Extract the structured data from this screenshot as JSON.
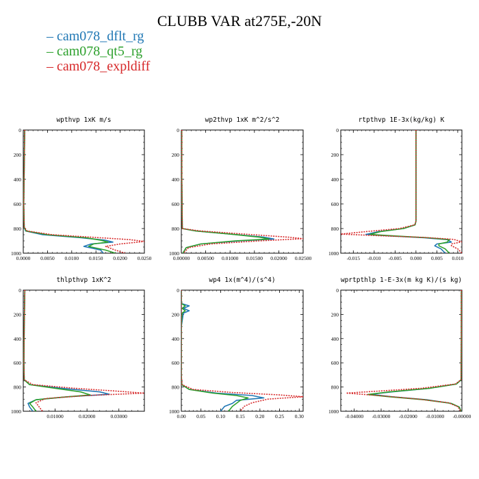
{
  "title": "CLUBB VAR at275E,-20N",
  "legend": [
    {
      "label": "cam078_dflt_rg",
      "color": "#1f77b4"
    },
    {
      "label": "cam078_qt5_rg",
      "color": "#2ca02c"
    },
    {
      "label": "cam078_expldiff",
      "color": "#d62728"
    }
  ],
  "chart_data": [
    {
      "type": "line",
      "title": "wpthvp  1xK m/s",
      "xlim": [
        0,
        0.025
      ],
      "xticks": [
        0,
        0.005,
        0.01,
        0.015,
        0.02,
        0.025
      ],
      "xticklabels": [
        "0.0000",
        "0.0050",
        "0.0100",
        "0.0150",
        "0.0200",
        "0.0250"
      ],
      "ylim": [
        1000,
        0
      ],
      "yticks": [
        0,
        200,
        400,
        600,
        800,
        1000
      ],
      "yticklabels": [
        "0",
        "200",
        "400",
        "600",
        "800",
        "1000"
      ],
      "series": [
        {
          "name": "cam078_dflt_rg",
          "color": "#1f77b4",
          "dash": "solid",
          "x": [
            0.0003,
            0.0002,
            0.0001,
            0.0002,
            0.0005,
            0.004,
            0.012,
            0.017,
            0.0185,
            0.014,
            0.0125,
            0.016,
            0.0165
          ],
          "y": [
            0,
            300,
            600,
            790,
            820,
            850,
            875,
            895,
            910,
            925,
            945,
            975,
            1000
          ]
        },
        {
          "name": "cam078_qt5_rg",
          "color": "#2ca02c",
          "dash": "solid",
          "x": [
            0.0003,
            0.0002,
            0.0001,
            0.0002,
            0.0006,
            0.005,
            0.013,
            0.016,
            0.0175,
            0.0145,
            0.0135,
            0.017,
            0.019
          ],
          "y": [
            0,
            300,
            600,
            790,
            820,
            850,
            875,
            895,
            910,
            925,
            945,
            975,
            1000
          ]
        },
        {
          "name": "cam078_expldiff",
          "color": "#d62728",
          "dash": "dotted",
          "x": [
            0.0003,
            0.0002,
            0.0001,
            0.0002,
            0.0008,
            0.006,
            0.016,
            0.022,
            0.025,
            0.02,
            0.017,
            0.019,
            0.021
          ],
          "y": [
            0,
            300,
            600,
            790,
            820,
            850,
            875,
            890,
            905,
            925,
            945,
            975,
            1000
          ]
        }
      ]
    },
    {
      "type": "line",
      "title": "wp2thvp  1xK m^2/s^2",
      "xlim": [
        0,
        0.025
      ],
      "xticks": [
        0,
        0.005,
        0.01,
        0.015,
        0.02,
        0.025
      ],
      "xticklabels": [
        "0.00000",
        "0.00500",
        "0.01000",
        "0.01500",
        "0.02000",
        "0.02500"
      ],
      "ylim": [
        1000,
        0
      ],
      "yticks": [
        0,
        200,
        400,
        600,
        800,
        1000
      ],
      "yticklabels": [
        "0",
        "200",
        "400",
        "600",
        "800",
        "1000"
      ],
      "series": [
        {
          "name": "cam078_dflt_rg",
          "color": "#1f77b4",
          "dash": "solid",
          "x": [
            0.0001,
            0.0001,
            0.0002,
            0.003,
            0.01,
            0.017,
            0.019,
            0.012,
            0.004,
            0.001,
            0.0003
          ],
          "y": [
            0,
            400,
            800,
            820,
            845,
            870,
            885,
            900,
            925,
            955,
            1000
          ]
        },
        {
          "name": "cam078_qt5_rg",
          "color": "#2ca02c",
          "dash": "solid",
          "x": [
            0.0001,
            0.0001,
            0.0002,
            0.003,
            0.01,
            0.016,
            0.018,
            0.011,
            0.004,
            0.001,
            0.0003
          ],
          "y": [
            0,
            400,
            800,
            820,
            845,
            870,
            885,
            900,
            925,
            955,
            1000
          ]
        },
        {
          "name": "cam078_expldiff",
          "color": "#d62728",
          "dash": "dotted",
          "x": [
            0.0001,
            0.0001,
            0.0002,
            0.004,
            0.013,
            0.022,
            0.025,
            0.016,
            0.006,
            0.0015,
            0.0004
          ],
          "y": [
            0,
            400,
            800,
            820,
            845,
            870,
            882,
            900,
            925,
            955,
            1000
          ]
        }
      ]
    },
    {
      "type": "line",
      "title": "rtpthvp  1E-3x(kg/kg) K",
      "xlim": [
        -0.018,
        0.011
      ],
      "xticks": [
        -0.015,
        -0.01,
        -0.005,
        0,
        0.005,
        0.01
      ],
      "xticklabels": [
        "-0.015",
        "-0.010",
        "-0.005",
        "0.000",
        "0.005",
        "0.010"
      ],
      "ylim": [
        1000,
        0
      ],
      "yticks": [
        0,
        200,
        400,
        600,
        800,
        1000
      ],
      "yticklabels": [
        "0",
        "200",
        "400",
        "600",
        "800",
        "1000"
      ],
      "series": [
        {
          "name": "cam078_dflt_rg",
          "color": "#1f77b4",
          "dash": "solid",
          "x": [
            0.0,
            0.0,
            0.0,
            0.0,
            -0.0002,
            -0.003,
            -0.009,
            -0.012,
            -0.006,
            0.002,
            0.0075,
            0.0085,
            0.005,
            0.0045,
            0.006,
            0.007
          ],
          "y": [
            0,
            300,
            600,
            740,
            770,
            800,
            825,
            848,
            860,
            875,
            890,
            910,
            925,
            940,
            965,
            1000
          ]
        },
        {
          "name": "cam078_qt5_rg",
          "color": "#2ca02c",
          "dash": "solid",
          "x": [
            0.0,
            0.0,
            0.0,
            0.0,
            -0.0002,
            -0.003,
            -0.0085,
            -0.011,
            -0.005,
            0.003,
            0.008,
            0.0075,
            0.0055,
            0.0055,
            0.007,
            0.008
          ],
          "y": [
            0,
            300,
            600,
            740,
            770,
            800,
            825,
            848,
            860,
            875,
            890,
            910,
            925,
            940,
            965,
            1000
          ]
        },
        {
          "name": "cam078_expldiff",
          "color": "#d62728",
          "dash": "dotted",
          "x": [
            0.0,
            0.0,
            0.0,
            0.0,
            -0.0003,
            -0.004,
            -0.012,
            -0.018,
            -0.009,
            0.002,
            0.009,
            0.011,
            0.0085,
            0.0085,
            0.01,
            0.011
          ],
          "y": [
            0,
            300,
            600,
            740,
            770,
            800,
            825,
            845,
            858,
            872,
            888,
            908,
            925,
            940,
            965,
            1000
          ]
        }
      ]
    },
    {
      "type": "line",
      "title": "thlpthvp  1xK^2",
      "xlim": [
        0,
        0.038
      ],
      "xticks": [
        0.01,
        0.02,
        0.03
      ],
      "xticklabels": [
        "0.01000",
        "0.02000",
        "0.03000"
      ],
      "ylim": [
        1000,
        0
      ],
      "yticks": [
        0,
        200,
        400,
        600,
        800,
        1000
      ],
      "yticklabels": [
        "0",
        "200",
        "400",
        "600",
        "800",
        "1000"
      ],
      "series": [
        {
          "name": "cam078_dflt_rg",
          "color": "#1f77b4",
          "dash": "solid",
          "x": [
            0.0005,
            0.0003,
            0.0002,
            0.0003,
            0.002,
            0.012,
            0.024,
            0.027,
            0.014,
            0.004,
            0.0015,
            0.002,
            0.003
          ],
          "y": [
            0,
            300,
            600,
            740,
            780,
            810,
            840,
            860,
            880,
            905,
            935,
            965,
            1000
          ]
        },
        {
          "name": "cam078_qt5_rg",
          "color": "#2ca02c",
          "dash": "solid",
          "x": [
            0.0005,
            0.0003,
            0.0002,
            0.0003,
            0.002,
            0.01,
            0.018,
            0.021,
            0.012,
            0.004,
            0.002,
            0.003,
            0.004
          ],
          "y": [
            0,
            300,
            600,
            740,
            780,
            810,
            840,
            865,
            885,
            905,
            935,
            965,
            1000
          ]
        },
        {
          "name": "cam078_expldiff",
          "color": "#d62728",
          "dash": "dotted",
          "x": [
            0.0005,
            0.0003,
            0.0002,
            0.0003,
            0.003,
            0.016,
            0.03,
            0.038,
            0.02,
            0.007,
            0.004,
            0.005,
            0.006
          ],
          "y": [
            0,
            300,
            600,
            740,
            780,
            810,
            835,
            850,
            870,
            895,
            930,
            965,
            1000
          ]
        }
      ]
    },
    {
      "type": "line",
      "title": "wp4  1x(m^4)/(s^4)",
      "xlim": [
        0,
        0.31
      ],
      "xticks": [
        0,
        0.05,
        0.1,
        0.15,
        0.2,
        0.25,
        0.3
      ],
      "xticklabels": [
        "0.00",
        "0.05",
        "0.10",
        "0.15",
        "0.20",
        "0.25",
        "0.30"
      ],
      "ylim": [
        1000,
        0
      ],
      "yticks": [
        0,
        200,
        400,
        600,
        800,
        1000
      ],
      "yticklabels": [
        "0",
        "200",
        "400",
        "600",
        "800",
        "1000"
      ],
      "series": [
        {
          "name": "cam078_dflt_rg",
          "color": "#1f77b4",
          "dash": "solid",
          "x": [
            0.0,
            0.0,
            0.02,
            0.005,
            0.02,
            0.005,
            0.0,
            0.0,
            0.001,
            0.02,
            0.09,
            0.18,
            0.21,
            0.14,
            0.13,
            0.11,
            0.1
          ],
          "y": [
            0,
            110,
            130,
            150,
            170,
            190,
            300,
            700,
            780,
            820,
            850,
            870,
            890,
            910,
            935,
            960,
            1000
          ]
        },
        {
          "name": "cam078_qt5_rg",
          "color": "#2ca02c",
          "dash": "solid",
          "x": [
            0.0,
            0.0,
            0.01,
            0.002,
            0.01,
            0.002,
            0.0,
            0.0,
            0.001,
            0.02,
            0.08,
            0.14,
            0.17,
            0.15,
            0.14,
            0.13,
            0.12
          ],
          "y": [
            0,
            110,
            130,
            150,
            170,
            190,
            300,
            700,
            780,
            820,
            850,
            870,
            890,
            910,
            935,
            960,
            1000
          ]
        },
        {
          "name": "cam078_expldiff",
          "color": "#d62728",
          "dash": "dotted",
          "x": [
            0.0,
            0.0,
            0.0,
            0.0,
            0.0,
            0.0,
            0.0,
            0.0,
            0.002,
            0.03,
            0.13,
            0.25,
            0.31,
            0.22,
            0.18,
            0.16,
            0.15
          ],
          "y": [
            0,
            110,
            130,
            150,
            170,
            190,
            300,
            700,
            780,
            820,
            845,
            865,
            880,
            900,
            930,
            960,
            1000
          ]
        }
      ]
    },
    {
      "type": "line",
      "title": "wprtpthlp  1-E-3x(m kg K)/(s kg)",
      "xlim": [
        -0.045,
        0
      ],
      "xticks": [
        -0.04,
        -0.03,
        -0.02,
        -0.01,
        0
      ],
      "xticklabels": [
        "-0.04000",
        "-0.03000",
        "-0.02000",
        "-0.01000",
        "-0.00000"
      ],
      "ylim": [
        1000,
        0
      ],
      "yticks": [
        0,
        200,
        400,
        600,
        800,
        1000
      ],
      "yticklabels": [
        "0",
        "200",
        "400",
        "600",
        "800",
        "1000"
      ],
      "series": [
        {
          "name": "cam078_dflt_rg",
          "color": "#1f77b4",
          "dash": "solid",
          "x": [
            -0.0002,
            -0.0002,
            -0.0003,
            -0.002,
            -0.012,
            -0.026,
            -0.034,
            -0.026,
            -0.013,
            -0.004,
            -0.001,
            -0.0003
          ],
          "y": [
            0,
            400,
            740,
            775,
            810,
            840,
            860,
            880,
            905,
            935,
            965,
            1000
          ]
        },
        {
          "name": "cam078_qt5_rg",
          "color": "#2ca02c",
          "dash": "solid",
          "x": [
            -0.0002,
            -0.0002,
            -0.0003,
            -0.002,
            -0.012,
            -0.027,
            -0.035,
            -0.027,
            -0.014,
            -0.004,
            -0.001,
            -0.0003
          ],
          "y": [
            0,
            400,
            740,
            775,
            810,
            840,
            862,
            880,
            905,
            935,
            965,
            1000
          ]
        },
        {
          "name": "cam078_expldiff",
          "color": "#d62728",
          "dash": "dotted",
          "x": [
            -0.0002,
            -0.0002,
            -0.0003,
            -0.0025,
            -0.015,
            -0.032,
            -0.043,
            -0.031,
            -0.016,
            -0.005,
            -0.0015,
            -0.0004
          ],
          "y": [
            0,
            400,
            740,
            775,
            810,
            835,
            850,
            870,
            900,
            930,
            962,
            1000
          ]
        }
      ]
    }
  ]
}
